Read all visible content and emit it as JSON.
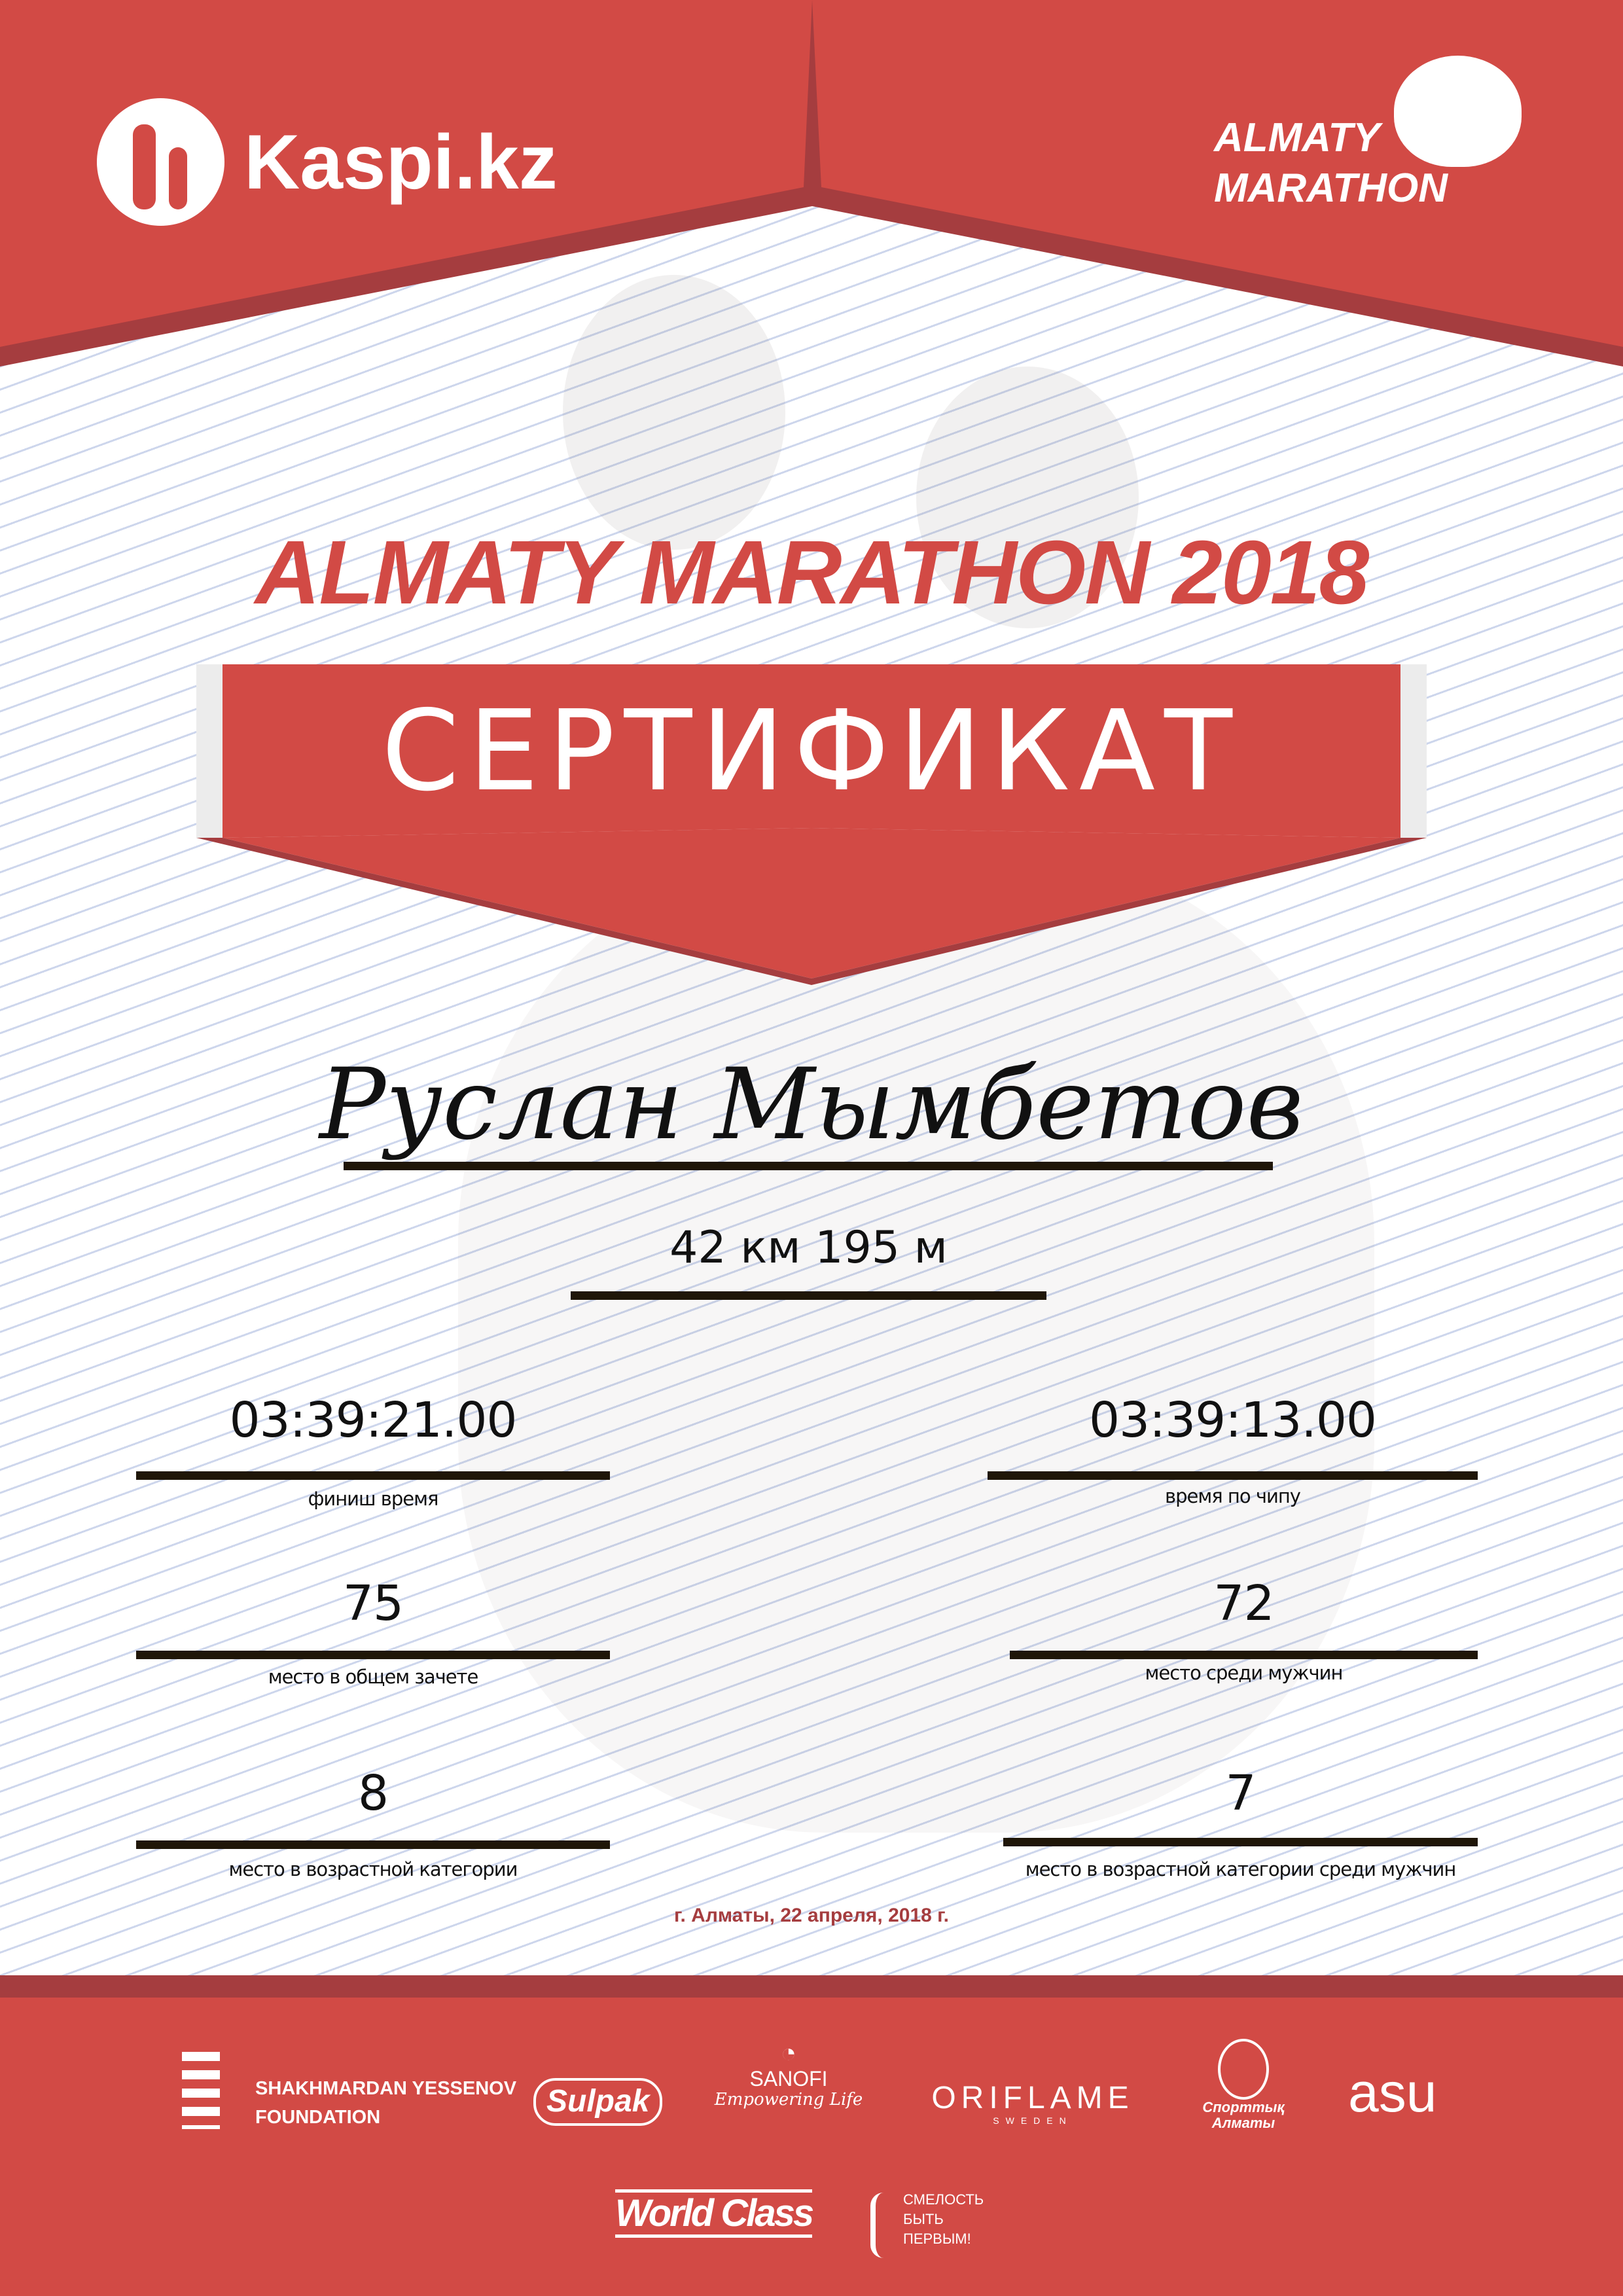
{
  "colors": {
    "brand_red": "#d24a45",
    "dark_red": "#a53d3f",
    "text_dark": "#111111"
  },
  "header": {
    "kaspi_logo": "Kaspi.kz",
    "marathon_logo_line1": "ALMATY",
    "marathon_logo_line2": "MARATHON"
  },
  "title": "ALMATY MARATHON 2018",
  "banner": "СЕРТИФИКАТ",
  "participant": {
    "name": "Руслан Мымбетов",
    "distance": "42 км 195 м"
  },
  "results": [
    {
      "value": "03:39:21.00",
      "label": "финиш время"
    },
    {
      "value": "03:39:13.00",
      "label": "время по чипу"
    },
    {
      "value": "75",
      "label": "место в общем зачете"
    },
    {
      "value": "72",
      "label": "место среди мужчин"
    },
    {
      "value": "8",
      "label": "место в возрастной категории"
    },
    {
      "value": "7",
      "label": "место в возрастной категории среди мужчин"
    }
  ],
  "date": "г. Алматы, 22 апреля, 2018 г.",
  "sponsors": {
    "yessenov_line1": "SHAKHMARDAN YESSENOV",
    "yessenov_line2": "FOUNDATION",
    "sulpak": "Sulpak",
    "sanofi": "SANOFI",
    "sanofi_tagline": "Empowering Life",
    "oriflame": "ORIFLAME",
    "oriflame_sub": "SWEDEN",
    "sport_almaty": "Спорттық Алматы",
    "asu": "asu",
    "worldclass": "World Class",
    "fund_line1": "СМЕЛОСТЬ",
    "fund_line2": "БЫТЬ",
    "fund_line3": "ПЕРВЫМ!"
  }
}
